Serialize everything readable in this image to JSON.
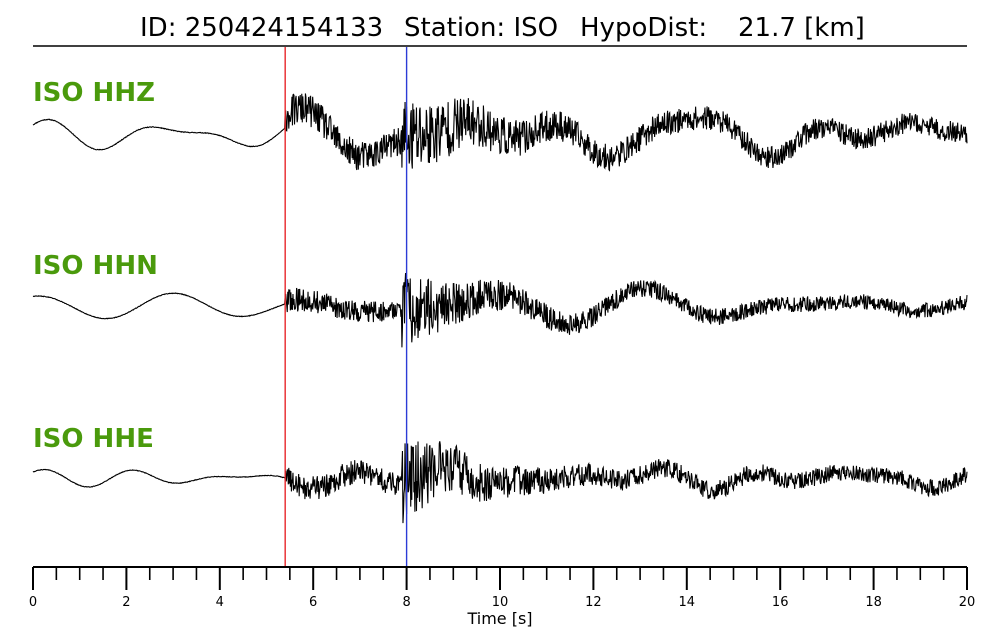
{
  "chart_data": {
    "type": "line",
    "title": {
      "id_label": "ID: 250424154133",
      "station_label": "Station: ISO",
      "hypodist_label": "HypoDist:",
      "hypodist_value": "21.7 [km]"
    },
    "xlabel": "Time [s]",
    "xlim": [
      0,
      20
    ],
    "x_ticks": [
      0,
      2,
      4,
      6,
      8,
      10,
      12,
      14,
      16,
      18,
      20
    ],
    "minor_tick_step": 0.5,
    "grid": false,
    "markers": [
      {
        "name": "P pick",
        "time": 5.4,
        "color": "#e8262a"
      },
      {
        "name": "S pick",
        "time": 8.0,
        "color": "#2b3bd6"
      }
    ],
    "label_color": "#4a9a0c",
    "trace_color": "#000000",
    "traces": [
      {
        "label": "ISO HHZ"
      },
      {
        "label": "ISO HHN"
      },
      {
        "label": "ISO HHE"
      }
    ]
  }
}
